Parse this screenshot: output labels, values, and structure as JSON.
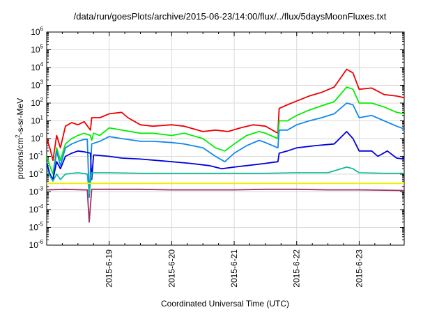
{
  "chart_data": {
    "type": "line",
    "title": "/data/run/goesPlots/archive/2015-06-23/14:00/flux/../flux/5daysMoonFluxes.txt",
    "xlabel": "Coordinated Universal Time (UTC)",
    "ylabel": {
      "before": "protons/cm",
      "sup": "2",
      "after": "-s-sr-MeV"
    },
    "x_unit": "days since 2015-06-18 00:00 UTC",
    "xlim": [
      0.0,
      5.72
    ],
    "x_ticks": [
      {
        "x": 1,
        "label": "2015-6-19"
      },
      {
        "x": 2,
        "label": "2015-6-20"
      },
      {
        "x": 3,
        "label": "2015-6-21"
      },
      {
        "x": 4,
        "label": "2015-6-22"
      },
      {
        "x": 5,
        "label": "2015-6-23"
      }
    ],
    "y_scale": "log",
    "ylim_exp": [
      -6,
      6
    ],
    "y_ticks": [
      {
        "exp": -6,
        "base": "10",
        "sup": "-6"
      },
      {
        "exp": -5,
        "base": "10",
        "sup": "-5"
      },
      {
        "exp": -4,
        "base": "10",
        "sup": "-4"
      },
      {
        "exp": -3,
        "base": "10",
        "sup": "-3"
      },
      {
        "exp": -2,
        "base": "10",
        "sup": "-2"
      },
      {
        "exp": -1,
        "base": "10",
        "sup": "-1"
      },
      {
        "exp": 0,
        "base": "10",
        "sup": "0"
      },
      {
        "exp": 1,
        "base": "10",
        "sup": "1"
      },
      {
        "exp": 2,
        "base": "10",
        "sup": "2"
      },
      {
        "exp": 3,
        "base": "10",
        "sup": "3"
      },
      {
        "exp": 4,
        "base": "10",
        "sup": "4"
      },
      {
        "exp": 5,
        "base": "10",
        "sup": "5"
      },
      {
        "exp": 6,
        "base": "10",
        "sup": "6"
      }
    ],
    "grid": true,
    "series": [
      {
        "color": "#ee0000",
        "points": [
          [
            0.0,
            1.0
          ],
          [
            0.05,
            0.3
          ],
          [
            0.1,
            0.06
          ],
          [
            0.16,
            1.5
          ],
          [
            0.22,
            0.3
          ],
          [
            0.3,
            5.0
          ],
          [
            0.4,
            8.0
          ],
          [
            0.5,
            6.0
          ],
          [
            0.6,
            9.0
          ],
          [
            0.7,
            3.0
          ],
          [
            0.72,
            15.0
          ],
          [
            0.85,
            15.0
          ],
          [
            1.0,
            25.0
          ],
          [
            1.2,
            30.0
          ],
          [
            1.3,
            15.0
          ],
          [
            1.5,
            6.0
          ],
          [
            1.7,
            5.0
          ],
          [
            2.0,
            6.0
          ],
          [
            2.2,
            5.0
          ],
          [
            2.5,
            2.5
          ],
          [
            2.7,
            3.0
          ],
          [
            2.9,
            2.5
          ],
          [
            3.1,
            4.0
          ],
          [
            3.3,
            6.0
          ],
          [
            3.5,
            5.0
          ],
          [
            3.7,
            2.0
          ],
          [
            3.72,
            50.0
          ],
          [
            3.85,
            80.0
          ],
          [
            4.0,
            130.0
          ],
          [
            4.2,
            250.0
          ],
          [
            4.4,
            400.0
          ],
          [
            4.6,
            800.0
          ],
          [
            4.8,
            8000.0
          ],
          [
            4.9,
            5000.0
          ],
          [
            5.0,
            600.0
          ],
          [
            5.2,
            700.0
          ],
          [
            5.4,
            300.0
          ],
          [
            5.6,
            250.0
          ],
          [
            5.72,
            200.0
          ]
        ]
      },
      {
        "color": "#00ee00",
        "points": [
          [
            0.0,
            0.1
          ],
          [
            0.05,
            0.03
          ],
          [
            0.1,
            0.01
          ],
          [
            0.16,
            0.3
          ],
          [
            0.22,
            0.06
          ],
          [
            0.3,
            0.5
          ],
          [
            0.4,
            1.0
          ],
          [
            0.5,
            1.5
          ],
          [
            0.6,
            2.0
          ],
          [
            0.7,
            1.5
          ],
          [
            0.72,
            0.8
          ],
          [
            0.75,
            2.0
          ],
          [
            0.85,
            1.5
          ],
          [
            1.0,
            4.0
          ],
          [
            1.2,
            3.0
          ],
          [
            1.5,
            2.0
          ],
          [
            1.7,
            2.0
          ],
          [
            2.0,
            1.5
          ],
          [
            2.2,
            2.0
          ],
          [
            2.5,
            1.0
          ],
          [
            2.7,
            0.3
          ],
          [
            2.85,
            0.2
          ],
          [
            3.0,
            0.5
          ],
          [
            3.2,
            1.5
          ],
          [
            3.4,
            2.5
          ],
          [
            3.5,
            2.0
          ],
          [
            3.7,
            1.0
          ],
          [
            3.72,
            10.0
          ],
          [
            3.85,
            10.0
          ],
          [
            4.0,
            20.0
          ],
          [
            4.2,
            40.0
          ],
          [
            4.4,
            70.0
          ],
          [
            4.6,
            120.0
          ],
          [
            4.8,
            800.0
          ],
          [
            4.9,
            600.0
          ],
          [
            5.0,
            100.0
          ],
          [
            5.2,
            100.0
          ],
          [
            5.4,
            60.0
          ],
          [
            5.6,
            30.0
          ],
          [
            5.72,
            25.0
          ]
        ]
      },
      {
        "color": "#1188ee",
        "points": [
          [
            0.0,
            0.05
          ],
          [
            0.05,
            0.01
          ],
          [
            0.1,
            0.005
          ],
          [
            0.16,
            0.2
          ],
          [
            0.22,
            0.03
          ],
          [
            0.3,
            0.3
          ],
          [
            0.4,
            0.5
          ],
          [
            0.5,
            0.7
          ],
          [
            0.6,
            0.9
          ],
          [
            0.65,
            0.9
          ],
          [
            0.68,
            0.0005
          ],
          [
            0.72,
            0.5
          ],
          [
            0.85,
            0.7
          ],
          [
            1.0,
            1.3
          ],
          [
            1.2,
            1.0
          ],
          [
            1.5,
            0.7
          ],
          [
            1.7,
            0.7
          ],
          [
            2.0,
            0.6
          ],
          [
            2.2,
            0.5
          ],
          [
            2.5,
            0.3
          ],
          [
            2.7,
            0.1
          ],
          [
            2.85,
            0.05
          ],
          [
            3.0,
            0.15
          ],
          [
            3.2,
            0.4
          ],
          [
            3.4,
            0.8
          ],
          [
            3.5,
            0.6
          ],
          [
            3.7,
            0.3
          ],
          [
            3.72,
            3.0
          ],
          [
            3.85,
            3.0
          ],
          [
            4.0,
            6.0
          ],
          [
            4.2,
            10.0
          ],
          [
            4.4,
            15.0
          ],
          [
            4.6,
            25.0
          ],
          [
            4.8,
            100.0
          ],
          [
            4.9,
            80.0
          ],
          [
            5.0,
            15.0
          ],
          [
            5.2,
            20.0
          ],
          [
            5.4,
            10.0
          ],
          [
            5.6,
            5.0
          ],
          [
            5.72,
            3.5
          ]
        ]
      },
      {
        "color": "#0000dd",
        "points": [
          [
            0.0,
            0.04
          ],
          [
            0.05,
            0.01
          ],
          [
            0.1,
            0.005
          ],
          [
            0.16,
            0.05
          ],
          [
            0.22,
            0.02
          ],
          [
            0.3,
            0.1
          ],
          [
            0.4,
            0.15
          ],
          [
            0.5,
            0.2
          ],
          [
            0.6,
            0.18
          ],
          [
            0.7,
            0.15
          ],
          [
            0.72,
            0.005
          ],
          [
            0.75,
            0.12
          ],
          [
            1.0,
            0.1
          ],
          [
            1.2,
            0.08
          ],
          [
            1.5,
            0.07
          ],
          [
            2.0,
            0.05
          ],
          [
            2.3,
            0.04
          ],
          [
            2.6,
            0.03
          ],
          [
            2.8,
            0.02
          ],
          [
            3.0,
            0.025
          ],
          [
            3.2,
            0.03
          ],
          [
            3.5,
            0.04
          ],
          [
            3.7,
            0.05
          ],
          [
            3.72,
            0.15
          ],
          [
            3.85,
            0.2
          ],
          [
            4.0,
            0.3
          ],
          [
            4.3,
            0.4
          ],
          [
            4.6,
            0.5
          ],
          [
            4.8,
            2.5
          ],
          [
            4.9,
            1.0
          ],
          [
            5.0,
            0.2
          ],
          [
            5.2,
            0.2
          ],
          [
            5.3,
            0.1
          ],
          [
            5.45,
            0.2
          ],
          [
            5.6,
            0.08
          ],
          [
            5.72,
            0.07
          ]
        ]
      },
      {
        "color": "#11bb99",
        "points": [
          [
            0.0,
            0.02
          ],
          [
            0.05,
            0.008
          ],
          [
            0.1,
            0.004
          ],
          [
            0.16,
            0.01
          ],
          [
            0.22,
            0.005
          ],
          [
            0.3,
            0.01
          ],
          [
            0.5,
            0.012
          ],
          [
            0.65,
            0.01
          ],
          [
            0.68,
            0.0008
          ],
          [
            0.72,
            0.012
          ],
          [
            1.0,
            0.012
          ],
          [
            1.5,
            0.011
          ],
          [
            2.0,
            0.011
          ],
          [
            2.5,
            0.011
          ],
          [
            3.0,
            0.011
          ],
          [
            3.5,
            0.011
          ],
          [
            4.0,
            0.012
          ],
          [
            4.5,
            0.012
          ],
          [
            4.8,
            0.025
          ],
          [
            4.9,
            0.02
          ],
          [
            5.0,
            0.012
          ],
          [
            5.4,
            0.011
          ],
          [
            5.72,
            0.011
          ]
        ]
      },
      {
        "color": "#eeee00",
        "points": [
          [
            0.0,
            0.003
          ],
          [
            0.5,
            0.003
          ],
          [
            1.0,
            0.003
          ],
          [
            1.5,
            0.003
          ],
          [
            2.0,
            0.003
          ],
          [
            2.5,
            0.003
          ],
          [
            3.0,
            0.003
          ],
          [
            3.5,
            0.003
          ],
          [
            4.0,
            0.003
          ],
          [
            4.5,
            0.003
          ],
          [
            5.0,
            0.003
          ],
          [
            5.72,
            0.003
          ]
        ]
      },
      {
        "color": "#993366",
        "points": [
          [
            0.0,
            0.0013
          ],
          [
            0.3,
            0.0014
          ],
          [
            0.6,
            0.0013
          ],
          [
            0.65,
            0.0013
          ],
          [
            0.68,
            2e-05
          ],
          [
            0.72,
            0.0014
          ],
          [
            1.0,
            0.0014
          ],
          [
            1.5,
            0.0014
          ],
          [
            2.0,
            0.0013
          ],
          [
            2.5,
            0.0013
          ],
          [
            3.0,
            0.0013
          ],
          [
            3.5,
            0.0014
          ],
          [
            4.0,
            0.0014
          ],
          [
            4.5,
            0.0013
          ],
          [
            5.0,
            0.0013
          ],
          [
            5.72,
            0.0012
          ]
        ]
      }
    ]
  }
}
